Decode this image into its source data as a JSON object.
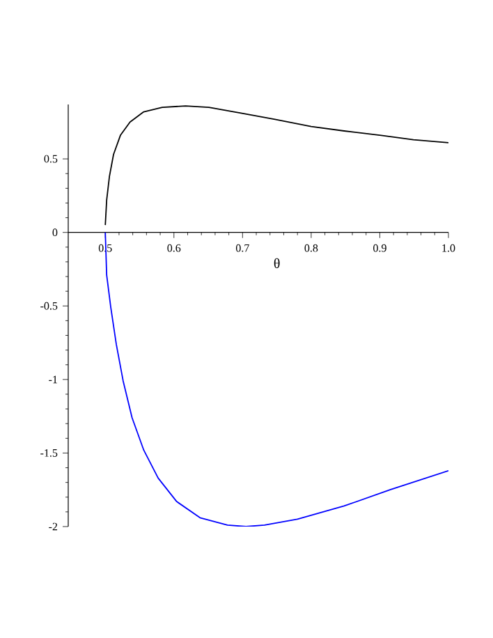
{
  "chart_data": {
    "type": "line",
    "xlabel": "θ",
    "xlim": [
      0.446,
      1.0
    ],
    "ylim": [
      -2.0,
      0.87
    ],
    "xticks": [
      0.5,
      0.6,
      0.7,
      0.8,
      0.9,
      {
        "value": 1.0,
        "label": "1.0"
      }
    ],
    "yticks": [
      -2,
      -1.5,
      -1,
      -0.5,
      0,
      0.5
    ],
    "grid": false,
    "marker": "none",
    "line_style": "solid",
    "series": [
      {
        "color": "#000000",
        "x": [
          0.5,
          0.502,
          0.506,
          0.512,
          0.522,
          0.536,
          0.556,
          0.583,
          0.617,
          0.651,
          0.699,
          0.746,
          0.8,
          0.848,
          0.902,
          0.949,
          1.0
        ],
        "values": [
          0.05,
          0.22,
          0.38,
          0.53,
          0.66,
          0.75,
          0.82,
          0.85,
          0.86,
          0.85,
          0.81,
          0.77,
          0.72,
          0.69,
          0.66,
          0.63,
          0.61
        ]
      },
      {
        "color": "#0000ff",
        "x": [
          0.5,
          0.502,
          0.508,
          0.516,
          0.526,
          0.539,
          0.556,
          0.577,
          0.604,
          0.638,
          0.678,
          0.705,
          0.732,
          0.78,
          0.848,
          0.915,
          1.0
        ],
        "values": [
          0.0,
          -0.29,
          -0.51,
          -0.76,
          -1.01,
          -1.26,
          -1.48,
          -1.67,
          -1.83,
          -1.94,
          -1.99,
          -2.0,
          -1.99,
          -1.95,
          -1.86,
          -1.75,
          -1.62
        ]
      }
    ]
  }
}
